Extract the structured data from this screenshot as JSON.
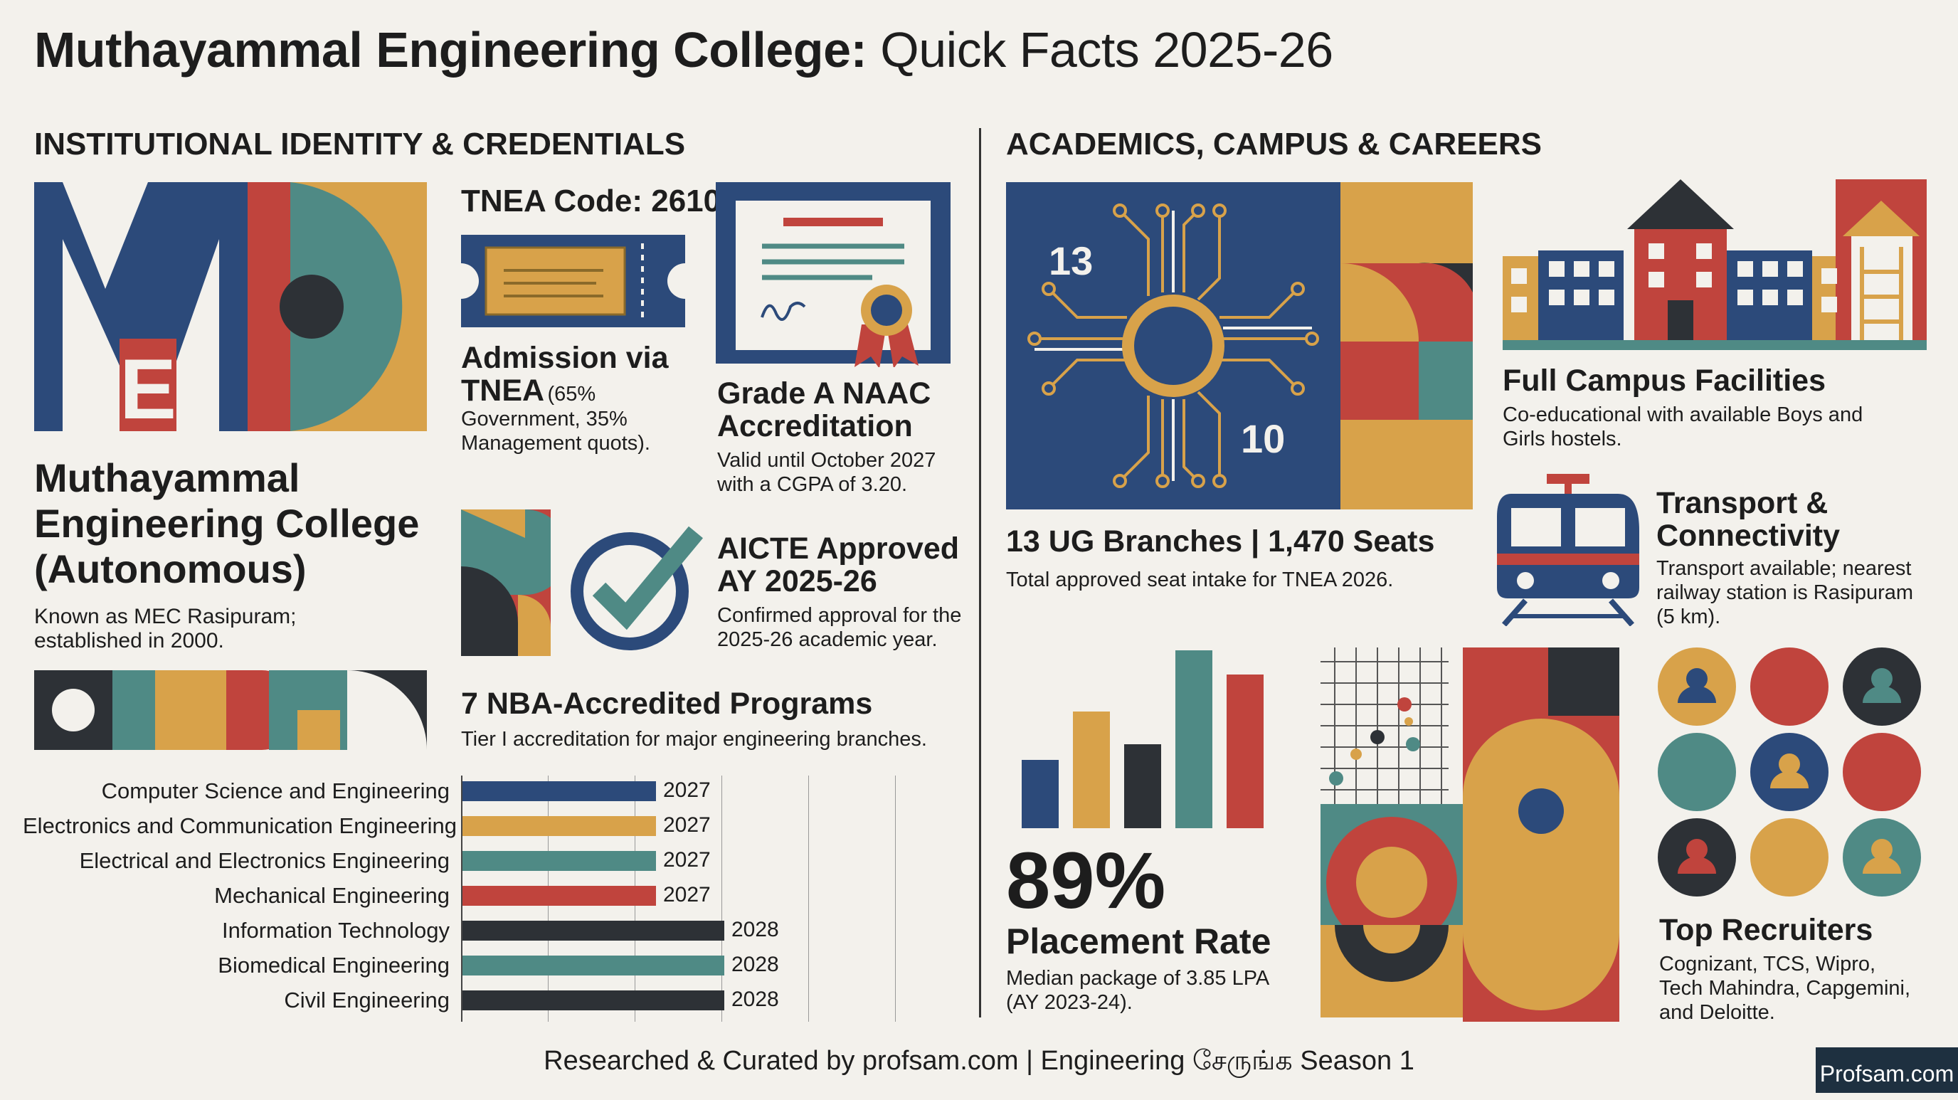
{
  "header": {
    "title_bold": "Muthayammal Engineering College:",
    "title_light": "Quick Facts 2025-26"
  },
  "colors": {
    "navy": "#2c4a7a",
    "gold": "#d8a24a",
    "teal": "#4f8a85",
    "red": "#c0443d",
    "charcoal": "#2d3136",
    "background": "#f3f1ec"
  },
  "left": {
    "section_title": "INSTITUTIONAL IDENTITY & CREDENTIALS",
    "logo_letters": "MEC",
    "college_name_l1": "Muthayammal",
    "college_name_l2": "Engineering College",
    "college_name_l3": "(Autonomous)",
    "known_as_l1": "Known as MEC Rasipuram;",
    "known_as_l2": "established in 2000.",
    "tnea_code": "TNEA Code: 2610",
    "admission_title_l1": "Admission via",
    "admission_title_l2": "TNEA",
    "admission_paren": "(65%",
    "admission_desc_l1": "Government, 35%",
    "admission_desc_l2": "Management quots).",
    "naac_title_l1": "Grade A NAAC",
    "naac_title_l2": "Accreditation",
    "naac_desc_l1": "Valid until October 2027",
    "naac_desc_l2": "with a CGPA of 3.20.",
    "aicte_title_l1": "AICTE Approved",
    "aicte_title_l2": "AY 2025-26",
    "aicte_desc_l1": "Confirmed approval for the",
    "aicte_desc_l2": "2025-26 academic year.",
    "nba_title": "7 NBA-Accredited Programs",
    "nba_desc": "Tier I accreditation for major engineering branches.",
    "nba_programs": [
      {
        "name": "Computer Science and Engineering",
        "valid_until": "2027",
        "color": "#2c4a7a"
      },
      {
        "name": "Electronics and Communication Engineering",
        "valid_until": "2027",
        "color": "#d8a24a"
      },
      {
        "name": "Electrical and Electronics Engineering",
        "valid_until": "2027",
        "color": "#4f8a85"
      },
      {
        "name": "Mechanical Engineering",
        "valid_until": "2027",
        "color": "#c0443d"
      },
      {
        "name": "Information Technology",
        "valid_until": "2028",
        "color": "#2d3136"
      },
      {
        "name": "Biomedical Engineering",
        "valid_until": "2028",
        "color": "#4f8a85"
      },
      {
        "name": "Civil Engineering",
        "valid_until": "2028",
        "color": "#2d3136"
      }
    ]
  },
  "right": {
    "section_title": "ACADEMICS, CAMPUS & CAREERS",
    "chip_num_a": "13",
    "chip_num_b": "10",
    "branches_title": "13 UG Branches | 1,470 Seats",
    "branches_desc": "Total approved seat intake for TNEA 2026.",
    "campus_title": "Full Campus Facilities",
    "campus_desc_l1": "Co-educational with available Boys and",
    "campus_desc_l2": "Girls hostels.",
    "transport_title_l1": "Transport &",
    "transport_title_l2": "Connectivity",
    "transport_desc_l1": "Transport available; nearest",
    "transport_desc_l2": "railway station is Rasipuram",
    "transport_desc_l3": "(5 km).",
    "placement_value": "89%",
    "placement_title": "Placement Rate",
    "placement_desc_l1": "Median package of 3.85 LPA",
    "placement_desc_l2": "(AY 2023-24).",
    "recruiters_title": "Top Recruiters",
    "recruiters_desc_l1": "Cognizant, TCS, Wipro,",
    "recruiters_desc_l2": "Tech Mahindra, Capgemini,",
    "recruiters_desc_l3": "and Deloitte."
  },
  "footer": {
    "credit": "Researched & Curated by profsam.com | Engineering சேருங்க Season 1",
    "brand": "Profsam.com"
  }
}
